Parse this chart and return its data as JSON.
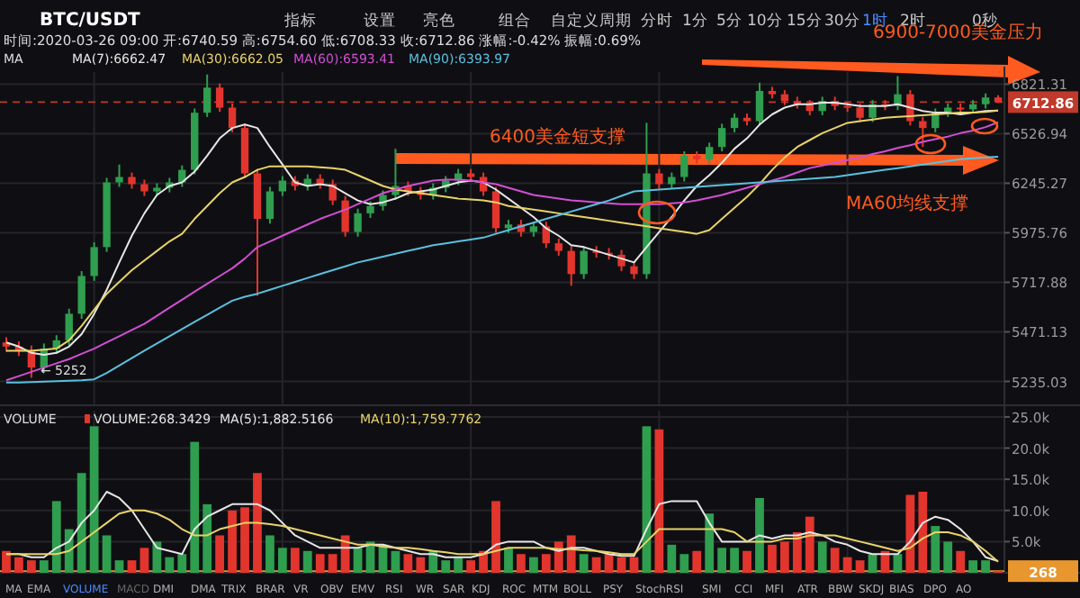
{
  "chart_data": [
    {
      "type": "candlestick",
      "title": "BTC/USDT",
      "legend_title": "MA",
      "legend": "top",
      "log": true,
      "grid": true,
      "categories": [
        null,
        null,
        null,
        null,
        null,
        null,
        null,
        null,
        null,
        null,
        null,
        null,
        null,
        null,
        null,
        null,
        null,
        null,
        null,
        null,
        null,
        null,
        null,
        null,
        null,
        null,
        null,
        null,
        null,
        null,
        null,
        null,
        null,
        null,
        null,
        null,
        null,
        null,
        null,
        null,
        null,
        null,
        null,
        null,
        null,
        null,
        null,
        null,
        null,
        null,
        null,
        null,
        null,
        null,
        null,
        null,
        null,
        null,
        null,
        null,
        null,
        null,
        null,
        null,
        null,
        null,
        null,
        null,
        null,
        null,
        null,
        null,
        null,
        null,
        null,
        null,
        null,
        null,
        null,
        null
      ],
      "ohlc": [
        [
          5420,
          5445,
          5375,
          5400
        ],
        [
          5400,
          5425,
          5355,
          5380
        ],
        [
          5380,
          5405,
          5252,
          5300
        ],
        [
          5300,
          5415,
          5275,
          5390
        ],
        [
          5390,
          5455,
          5365,
          5430
        ],
        [
          5430,
          5585,
          5405,
          5560
        ],
        [
          5560,
          5775,
          5535,
          5750
        ],
        [
          5750,
          5925,
          5725,
          5900
        ],
        [
          5900,
          6275,
          5875,
          6250
        ],
        [
          6250,
          6350,
          6225,
          6280
        ],
        [
          6280,
          6305,
          6215,
          6240
        ],
        [
          6240,
          6265,
          6175,
          6200
        ],
        [
          6200,
          6245,
          6175,
          6220
        ],
        [
          6220,
          6275,
          6195,
          6250
        ],
        [
          6250,
          6345,
          6225,
          6320
        ],
        [
          6320,
          6675,
          6295,
          6650
        ],
        [
          6650,
          6880,
          6625,
          6800
        ],
        [
          6800,
          6825,
          6655,
          6680
        ],
        [
          6680,
          6705,
          6535,
          6560
        ],
        [
          6560,
          6585,
          6275,
          6300
        ],
        [
          6300,
          6325,
          5650,
          6050
        ],
        [
          6050,
          6225,
          6025,
          6200
        ],
        [
          6200,
          6285,
          6175,
          6260
        ],
        [
          6260,
          6285,
          6205,
          6230
        ],
        [
          6230,
          6295,
          6205,
          6270
        ],
        [
          6270,
          6295,
          6215,
          6240
        ],
        [
          6240,
          6265,
          6125,
          6150
        ],
        [
          6150,
          6175,
          5955,
          5980
        ],
        [
          5980,
          6105,
          5955,
          6080
        ],
        [
          6080,
          6145,
          6055,
          6120
        ],
        [
          6120,
          6205,
          6095,
          6180
        ],
        [
          6180,
          6440,
          6155,
          6230
        ],
        [
          6230,
          6255,
          6175,
          6200
        ],
        [
          6200,
          6225,
          6155,
          6180
        ],
        [
          6180,
          6245,
          6155,
          6220
        ],
        [
          6220,
          6285,
          6195,
          6260
        ],
        [
          6260,
          6325,
          6235,
          6300
        ],
        [
          6300,
          6325,
          6255,
          6280
        ],
        [
          6280,
          6305,
          6175,
          6200
        ],
        [
          6200,
          6225,
          5975,
          6000
        ],
        [
          6000,
          6045,
          5975,
          6020
        ],
        [
          6020,
          6045,
          5955,
          5980
        ],
        [
          5980,
          6035,
          5955,
          6010
        ],
        [
          6010,
          6035,
          5895,
          5920
        ],
        [
          5920,
          5945,
          5855,
          5880
        ],
        [
          5880,
          5905,
          5700,
          5760
        ],
        [
          5760,
          5905,
          5735,
          5880
        ],
        [
          5880,
          5905,
          5845,
          5870
        ],
        [
          5870,
          5895,
          5835,
          5860
        ],
        [
          5860,
          5885,
          5775,
          5800
        ],
        [
          5800,
          5825,
          5735,
          5760
        ],
        [
          5760,
          6590,
          5735,
          6300
        ],
        [
          6300,
          6325,
          6215,
          6240
        ],
        [
          6240,
          6305,
          6215,
          6280
        ],
        [
          6280,
          6425,
          6255,
          6400
        ],
        [
          6400,
          6425,
          6355,
          6380
        ],
        [
          6380,
          6475,
          6355,
          6450
        ],
        [
          6450,
          6585,
          6425,
          6560
        ],
        [
          6560,
          6645,
          6535,
          6620
        ],
        [
          6620,
          6645,
          6575,
          6600
        ],
        [
          6600,
          6830,
          6575,
          6780
        ],
        [
          6780,
          6805,
          6735,
          6760
        ],
        [
          6760,
          6785,
          6695,
          6720
        ],
        [
          6720,
          6745,
          6675,
          6700
        ],
        [
          6700,
          6725,
          6635,
          6660
        ],
        [
          6660,
          6745,
          6635,
          6720
        ],
        [
          6720,
          6745,
          6665,
          6690
        ],
        [
          6690,
          6715,
          6655,
          6680
        ],
        [
          6680,
          6705,
          6595,
          6620
        ],
        [
          6620,
          6725,
          6595,
          6700
        ],
        [
          6700,
          6725,
          6665,
          6690
        ],
        [
          6690,
          6870,
          6665,
          6760
        ],
        [
          6760,
          6785,
          6575,
          6600
        ],
        [
          6600,
          6625,
          6450,
          6560
        ],
        [
          6560,
          6675,
          6535,
          6650
        ],
        [
          6650,
          6705,
          6625,
          6680
        ],
        [
          6680,
          6705,
          6645,
          6670
        ],
        [
          6670,
          6725,
          6645,
          6700
        ],
        [
          6700,
          6765,
          6675,
          6740.59
        ],
        [
          6740.59,
          6754.6,
          6708.33,
          6712.86
        ]
      ],
      "series": [
        {
          "name": "MA(7):6662.47",
          "type": "line",
          "color": "#e6e6e6",
          "values": [
            5420,
            5400,
            5370,
            5360,
            5370,
            5400,
            5460,
            5560,
            5680,
            5820,
            5960,
            6080,
            6180,
            6230,
            6250,
            6310,
            6400,
            6500,
            6560,
            6580,
            6560,
            6450,
            6350,
            6250,
            6230,
            6240,
            6230,
            6190,
            6150,
            6130,
            6140,
            6160,
            6190,
            6200,
            6210,
            6230,
            6250,
            6260,
            6250,
            6210,
            6160,
            6110,
            6060,
            6000,
            5960,
            5910,
            5900,
            5880,
            5860,
            5840,
            5820,
            5900,
            5980,
            6060,
            6150,
            6230,
            6290,
            6360,
            6440,
            6500,
            6580,
            6640,
            6680,
            6700,
            6700,
            6710,
            6710,
            6700,
            6690,
            6690,
            6690,
            6700,
            6680,
            6660,
            6650,
            6650,
            6640,
            6650,
            6660,
            6662.47
          ]
        },
        {
          "name": "MA(30):6662.05",
          "type": "line",
          "color": "#e8d36a",
          "values": [
            5380,
            5380,
            5380,
            5385,
            5390,
            5430,
            5500,
            5580,
            5660,
            5720,
            5780,
            5830,
            5880,
            5930,
            5970,
            6050,
            6120,
            6190,
            6250,
            6280,
            6320,
            6340,
            6340,
            6340,
            6340,
            6335,
            6330,
            6320,
            6290,
            6260,
            6230,
            6210,
            6200,
            6190,
            6180,
            6170,
            6160,
            6155,
            6150,
            6140,
            6120,
            6110,
            6100,
            6090,
            6080,
            6070,
            6060,
            6050,
            6040,
            6030,
            6020,
            6010,
            6000,
            5990,
            5980,
            5970,
            5990,
            6050,
            6110,
            6170,
            6240,
            6320,
            6390,
            6450,
            6490,
            6530,
            6560,
            6590,
            6600,
            6610,
            6620,
            6625,
            6630,
            6635,
            6640,
            6645,
            6650,
            6650,
            6655,
            6662.05
          ]
        },
        {
          "name": "MA(60):6593.41",
          "type": "line",
          "color": "#d24fd2",
          "values": [
            5240,
            5260,
            5280,
            5300,
            5320,
            5340,
            5365,
            5390,
            5420,
            5450,
            5480,
            5510,
            5550,
            5590,
            5630,
            5670,
            5710,
            5750,
            5790,
            5840,
            5900,
            5930,
            5960,
            5990,
            6020,
            6050,
            6075,
            6100,
            6130,
            6160,
            6190,
            6210,
            6230,
            6245,
            6260,
            6265,
            6265,
            6260,
            6250,
            6240,
            6220,
            6200,
            6180,
            6170,
            6160,
            6150,
            6145,
            6140,
            6135,
            6130,
            6130,
            6130,
            6130,
            6135,
            6140,
            6150,
            6165,
            6180,
            6200,
            6220,
            6240,
            6260,
            6280,
            6305,
            6330,
            6345,
            6360,
            6375,
            6390,
            6410,
            6425,
            6445,
            6460,
            6480,
            6495,
            6510,
            6530,
            6545,
            6565,
            6593.41
          ]
        },
        {
          "name": "MA(90):6393.97",
          "type": "line",
          "color": "#5bc0de",
          "values": [
            5230,
            5230,
            5232,
            5234,
            5236,
            5238,
            5240,
            5245,
            5275,
            5310,
            5345,
            5380,
            5415,
            5450,
            5485,
            5520,
            5555,
            5590,
            5625,
            5645,
            5660,
            5680,
            5700,
            5720,
            5740,
            5760,
            5780,
            5800,
            5820,
            5835,
            5850,
            5865,
            5880,
            5895,
            5910,
            5920,
            5930,
            5940,
            5950,
            5970,
            5990,
            6010,
            6030,
            6050,
            6070,
            6090,
            6110,
            6130,
            6150,
            6175,
            6200,
            6205,
            6210,
            6215,
            6220,
            6225,
            6230,
            6235,
            6240,
            6245,
            6250,
            6255,
            6260,
            6265,
            6270,
            6275,
            6280,
            6290,
            6300,
            6310,
            6320,
            6330,
            6340,
            6350,
            6360,
            6370,
            6380,
            6385,
            6390,
            6393.97
          ]
        }
      ],
      "ylim": [
        5125,
        6895
      ],
      "yticks": [
        5235.03,
        5471.13,
        5717.88,
        5975.76,
        6245.27,
        6526.94,
        6821.31
      ],
      "ref_lines": [
        {
          "axis": "y",
          "value": 6712.86,
          "label": "6712.86",
          "color": "#c0392b",
          "line_style": "dashed"
        }
      ],
      "annotations": [
        "指标",
        "设置",
        "亮色",
        "组合",
        "自定义周期",
        "分时",
        "1分",
        "5分",
        "10分",
        "15分",
        "30分",
        "1时",
        "2时",
        "0秒",
        "时间:2020-03-26 09:00  开:6740.59  高:6754.60  低:6708.33  收:6712.86  涨幅:-0.42%  振幅:0.69%",
        "6900-7000美金压力",
        "6400美金短支撑",
        "MA60均线支撑",
        {
          "text": "← 5252",
          "y": 5252
        }
      ]
    },
    {
      "type": "bar",
      "legend_title": "VOLUME",
      "legend": "top",
      "grid": true,
      "categories": [
        null,
        null,
        null,
        null,
        null,
        null,
        null,
        null,
        null,
        null,
        null,
        null,
        null,
        null,
        null,
        null,
        null,
        null,
        null,
        null,
        null,
        null,
        null,
        null,
        null,
        null,
        null,
        null,
        null,
        null,
        null,
        null,
        null,
        null,
        null,
        null,
        null,
        null,
        null,
        null,
        null,
        null,
        null,
        null,
        null,
        null,
        null,
        null,
        null,
        null,
        null,
        null,
        null,
        null,
        null,
        null,
        null,
        null,
        null,
        null,
        null,
        null,
        null,
        null,
        null,
        null,
        null,
        null,
        null,
        null,
        null,
        null,
        null,
        null,
        null,
        null,
        null,
        null,
        null,
        null
      ],
      "series": [
        {
          "name": "VOLUME:268.3429",
          "color": "#e6e6e6",
          "values": [
            3500,
            2500,
            2000,
            2000,
            11500,
            7000,
            16000,
            23500,
            6000,
            2000,
            2000,
            4000,
            5000,
            2500,
            3000,
            21000,
            11000,
            6000,
            10000,
            10500,
            16000,
            6000,
            4000,
            4000,
            3500,
            3000,
            3000,
            6000,
            4000,
            5000,
            4500,
            3500,
            3000,
            2500,
            3500,
            2000,
            2500,
            2000,
            3500,
            11500,
            4000,
            3000,
            2500,
            3000,
            5000,
            6000,
            3000,
            2500,
            3000,
            2500,
            2500,
            23500,
            23000,
            4500,
            3000,
            3500,
            9500,
            4000,
            4000,
            3500,
            12000,
            4500,
            5000,
            6500,
            9000,
            5000,
            4000,
            2500,
            2000,
            3000,
            3500,
            3000,
            12500,
            13000,
            7500,
            5000,
            3500,
            2000,
            2000,
            268.3429
          ],
          "colors": [
            "#e2352d",
            "#e2352d",
            "#e2352d",
            "#2f9e4f",
            "#2f9e4f",
            "#2f9e4f",
            "#2f9e4f",
            "#2f9e4f",
            "#2f9e4f",
            "#2f9e4f",
            "#e2352d",
            "#e2352d",
            "#2f9e4f",
            "#2f9e4f",
            "#2f9e4f",
            "#2f9e4f",
            "#2f9e4f",
            "#e2352d",
            "#e2352d",
            "#e2352d",
            "#e2352d",
            "#2f9e4f",
            "#2f9e4f",
            "#e2352d",
            "#2f9e4f",
            "#e2352d",
            "#e2352d",
            "#e2352d",
            "#2f9e4f",
            "#2f9e4f",
            "#2f9e4f",
            "#2f9e4f",
            "#e2352d",
            "#e2352d",
            "#2f9e4f",
            "#2f9e4f",
            "#2f9e4f",
            "#e2352d",
            "#e2352d",
            "#e2352d",
            "#2f9e4f",
            "#e2352d",
            "#2f9e4f",
            "#e2352d",
            "#e2352d",
            "#e2352d",
            "#2f9e4f",
            "#e2352d",
            "#e2352d",
            "#e2352d",
            "#e2352d",
            "#2f9e4f",
            "#e2352d",
            "#2f9e4f",
            "#2f9e4f",
            "#e2352d",
            "#2f9e4f",
            "#2f9e4f",
            "#2f9e4f",
            "#e2352d",
            "#2f9e4f",
            "#e2352d",
            "#e2352d",
            "#e2352d",
            "#e2352d",
            "#2f9e4f",
            "#e2352d",
            "#e2352d",
            "#e2352d",
            "#2f9e4f",
            "#e2352d",
            "#2f9e4f",
            "#e2352d",
            "#e2352d",
            "#2f9e4f",
            "#2f9e4f",
            "#e2352d",
            "#2f9e4f",
            "#2f9e4f",
            "#e2352d"
          ]
        },
        {
          "name": "MA(5):1,882.5166",
          "type": "line",
          "color": "#e6e6e6",
          "values": [
            3000,
            3000,
            2500,
            2500,
            4000,
            5000,
            8000,
            10000,
            13000,
            12000,
            10000,
            7000,
            4000,
            3500,
            3000,
            7000,
            9000,
            10000,
            11000,
            11000,
            11000,
            10000,
            8000,
            6000,
            5000,
            4000,
            4000,
            4000,
            4000,
            4500,
            4500,
            4000,
            3500,
            3000,
            3000,
            2500,
            2500,
            2500,
            3000,
            4500,
            5000,
            5000,
            5000,
            4000,
            3500,
            4000,
            4000,
            3500,
            3000,
            2700,
            2700,
            7000,
            11000,
            11500,
            11500,
            11500,
            8000,
            5000,
            5000,
            5000,
            6000,
            5500,
            6000,
            6000,
            6500,
            6000,
            5000,
            4500,
            3500,
            3000,
            3000,
            3000,
            5000,
            8000,
            9000,
            8500,
            7000,
            5000,
            2500,
            1882.5166
          ]
        },
        {
          "name": "MA(10):1,759.7762",
          "type": "line",
          "color": "#e8d36a",
          "values": [
            3000,
            3000,
            3000,
            3000,
            3000,
            3500,
            5000,
            6500,
            8000,
            9500,
            10000,
            10000,
            9500,
            8500,
            7000,
            6000,
            6000,
            7000,
            7500,
            8000,
            8000,
            7800,
            7500,
            7000,
            6500,
            6000,
            5500,
            5000,
            4500,
            4500,
            4200,
            4000,
            4000,
            3800,
            3500,
            3300,
            3000,
            3000,
            3000,
            3500,
            4000,
            4000,
            4000,
            4000,
            3800,
            3800,
            3600,
            3500,
            3300,
            3000,
            3000,
            5000,
            7000,
            7000,
            7000,
            7000,
            7000,
            7000,
            6500,
            5000,
            5000,
            5000,
            5500,
            5500,
            6000,
            6000,
            6000,
            5500,
            5000,
            4500,
            4000,
            3500,
            4000,
            5500,
            6500,
            6500,
            6000,
            5000,
            3500,
            1759.7762
          ]
        }
      ],
      "ylim": [
        0,
        26000
      ],
      "yticks": [
        {
          "value": 5000,
          "label": "5.0k"
        },
        {
          "value": 10000,
          "label": "10.0k"
        },
        {
          "value": 15000,
          "label": "15.0k"
        },
        {
          "value": 20000,
          "label": "20.0k"
        },
        {
          "value": 25000,
          "label": "25.0k"
        }
      ],
      "ref_lines": [
        {
          "axis": "y",
          "value": 268,
          "label": "268",
          "color": "#e8962e"
        }
      ],
      "annotations": [
        "MA",
        "EMA",
        "VOLUME",
        "MACD",
        "DMI",
        "DMA",
        "TRIX",
        "BRAR",
        "VR",
        "OBV",
        "EMV",
        "RSI",
        "WR",
        "SAR",
        "KDJ",
        "ROC",
        "MTM",
        "BOLL",
        "PSY",
        "StochRSI",
        "SMI",
        "CCI",
        "MFI",
        "ATR",
        "BBW",
        "SKDJ",
        "BIAS",
        "DPO",
        "AO"
      ]
    }
  ]
}
